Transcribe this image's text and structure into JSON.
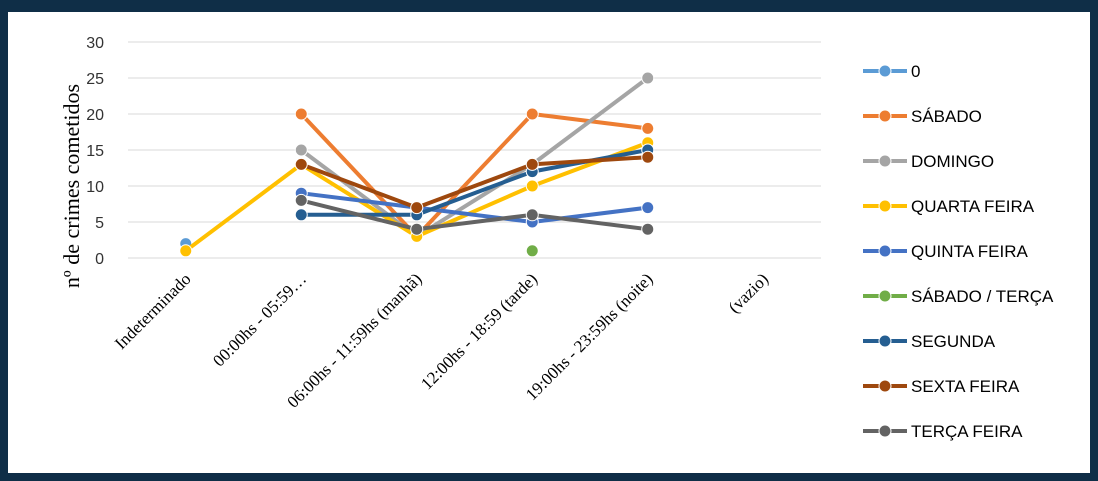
{
  "chart_data": {
    "type": "line",
    "title": "",
    "xlabel": "",
    "ylabel": "nº de crimes cometidos",
    "ylim": [
      0,
      30
    ],
    "yticks": [
      0,
      5,
      10,
      15,
      20,
      25,
      30
    ],
    "grid": true,
    "legend_position": "right",
    "categories": [
      "Indeterminado",
      "00:00hs - 05:59…",
      "06:00hs - 11:59hs (manhã)",
      "12:00hs - 18:59 (tarde)",
      "19:00hs - 23:59hs (noite)",
      "(vazio)"
    ],
    "series": [
      {
        "name": "0",
        "color": "#5b9bd5",
        "values": [
          2,
          null,
          null,
          null,
          null,
          null
        ]
      },
      {
        "name": "SÁBADO",
        "color": "#ed7d31",
        "values": [
          null,
          20,
          3,
          20,
          18,
          null
        ]
      },
      {
        "name": "DOMINGO",
        "color": "#a5a5a5",
        "values": [
          null,
          15,
          3,
          13,
          25,
          null
        ]
      },
      {
        "name": "QUARTA FEIRA",
        "color": "#ffc000",
        "values": [
          1,
          13,
          3,
          10,
          16,
          null
        ]
      },
      {
        "name": "QUINTA FEIRA",
        "color": "#4472c4",
        "values": [
          null,
          9,
          7,
          5,
          7,
          null
        ]
      },
      {
        "name": "SÁBADO / TERÇA",
        "color": "#70ad47",
        "values": [
          null,
          null,
          null,
          1,
          null,
          null
        ]
      },
      {
        "name": "SEGUNDA",
        "color": "#255e91",
        "values": [
          null,
          6,
          6,
          12,
          15,
          null
        ]
      },
      {
        "name": "SEXTA FEIRA",
        "color": "#9e480e",
        "values": [
          null,
          13,
          7,
          13,
          14,
          null
        ]
      },
      {
        "name": "TERÇA FEIRA",
        "color": "#636363",
        "values": [
          null,
          8,
          4,
          6,
          4,
          null
        ]
      }
    ]
  }
}
